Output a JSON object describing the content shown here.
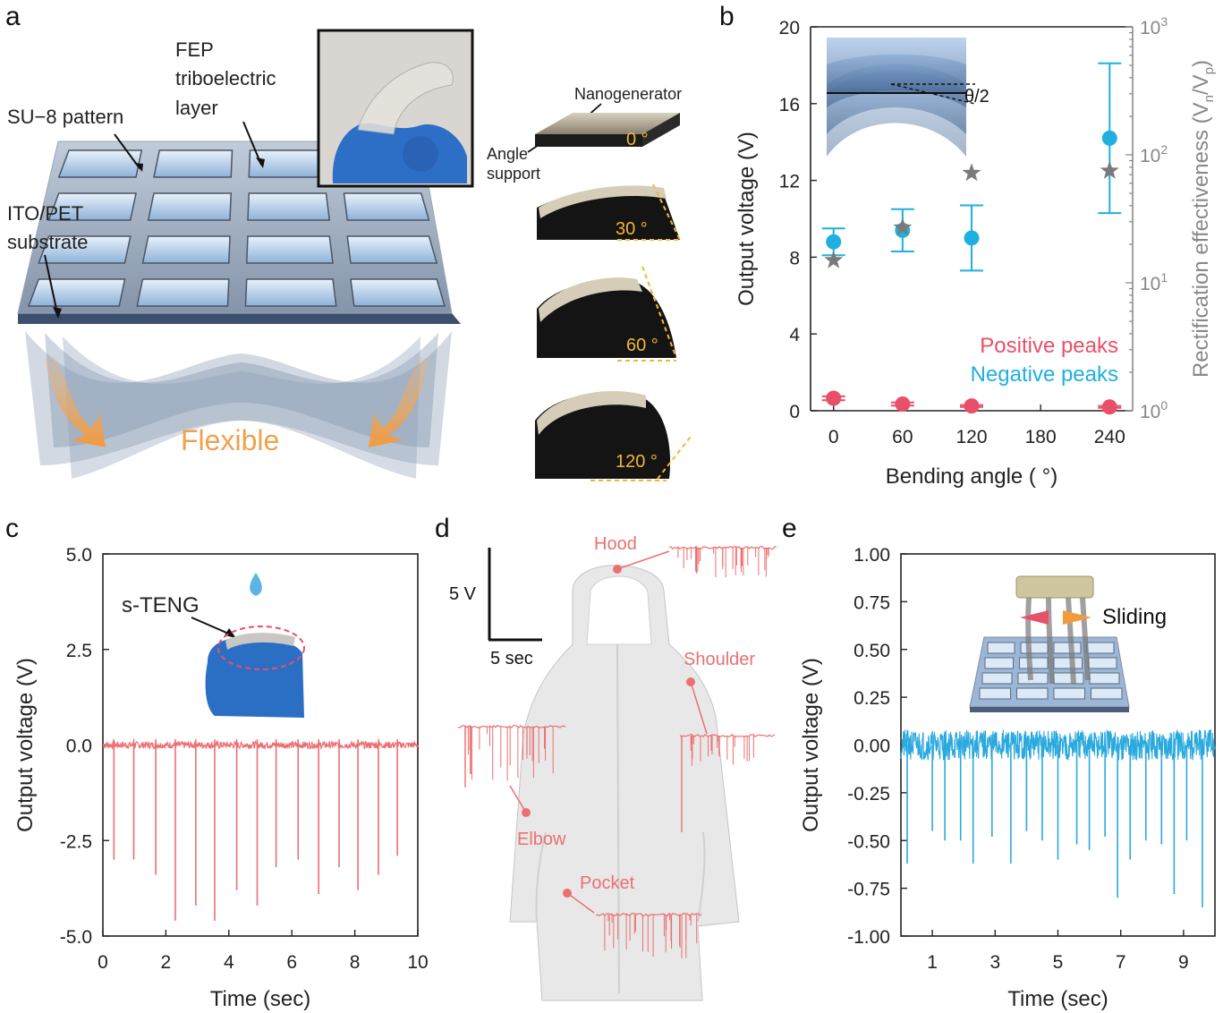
{
  "panels": {
    "a": {
      "letter": "a",
      "labels": {
        "fep": "FEP",
        "tribo": "triboelectric",
        "layer": "layer",
        "su8": "SU−8 pattern",
        "ito": "ITO/PET",
        "substrate": "substrate",
        "flexible": "Flexible",
        "nanogen": "Nanogenerator",
        "angle": "Angle",
        "support": "support"
      },
      "angles": [
        "0 °",
        "30 °",
        "60 °",
        "120 °"
      ]
    },
    "b": {
      "letter": "b",
      "inset_label": "θ/2",
      "legend": {
        "positive": "Positive peaks",
        "negative": "Negative peaks"
      },
      "ylabel": "Output voltage (V)",
      "y2label_main": "Rectification effectiveness (V",
      "y2_sub_n": "n",
      "y2_slash": "/V",
      "y2_sub_p": "p",
      "y2_close": ")",
      "y2ticks": [
        {
          "base": "10",
          "exp": "0"
        },
        {
          "base": "10",
          "exp": "1"
        },
        {
          "base": "10",
          "exp": "2"
        },
        {
          "base": "10",
          "exp": "3"
        }
      ]
    },
    "c": {
      "letter": "c",
      "inset_label": "s-TENG"
    },
    "d": {
      "letter": "d",
      "scale_v": "5 V",
      "scale_t": "5 sec",
      "locations": [
        "Hood",
        "Shoulder",
        "Elbow",
        "Pocket"
      ]
    },
    "e": {
      "letter": "e",
      "inset_label": "Sliding"
    }
  },
  "chart_data": [
    {
      "id": "b",
      "type": "scatter",
      "xlabel": "Bending angle ( °)",
      "ylabel": "Output voltage (V)",
      "xlim": [
        -20,
        260
      ],
      "ylim": [
        0,
        20
      ],
      "xticks": [
        0,
        60,
        120,
        180,
        240
      ],
      "yticks": [
        0,
        4,
        8,
        12,
        16,
        20
      ],
      "y2scale": "log",
      "y2lim": [
        1,
        1000
      ],
      "series": [
        {
          "name": "Positive peaks",
          "color": "#e8506a",
          "x": [
            0,
            60,
            120,
            240
          ],
          "y": [
            0.65,
            0.35,
            0.25,
            0.2
          ],
          "err": [
            0.1,
            0.08,
            0.05,
            0.05
          ]
        },
        {
          "name": "Negative peaks",
          "color": "#1fb0e0",
          "x": [
            0,
            60,
            120,
            240
          ],
          "y": [
            8.8,
            9.4,
            9.0,
            14.2
          ],
          "err": [
            0.7,
            1.1,
            1.7,
            3.9
          ]
        },
        {
          "name": "Rectification effectiveness",
          "color": "#7a7a7a",
          "marker": "star",
          "axis": "y2",
          "x": [
            0,
            60,
            120,
            240
          ],
          "y": [
            15,
            27,
            72,
            75
          ]
        }
      ]
    },
    {
      "id": "c",
      "type": "line",
      "xlabel": "Time (sec)",
      "ylabel": "Output voltage (V)",
      "xlim": [
        0,
        10
      ],
      "ylim": [
        -5,
        5
      ],
      "xticks": [
        0,
        2,
        4,
        6,
        8,
        10
      ],
      "yticks": [
        "5.0",
        "2.5",
        "0.0",
        "-2.5",
        "-5.0"
      ],
      "color": "#ec6f72",
      "baseline": 0,
      "peaks_x": [
        0.35,
        0.98,
        1.68,
        2.3,
        2.95,
        3.55,
        4.25,
        4.9,
        5.5,
        6.2,
        6.85,
        7.5,
        8.1,
        8.75,
        9.35
      ],
      "peaks_y": [
        -3.0,
        -3.0,
        -3.4,
        -4.6,
        -4.2,
        -4.6,
        -3.8,
        -4.2,
        -3.2,
        -3.0,
        -3.9,
        -3.2,
        -3.8,
        -3.4,
        -2.9
      ]
    },
    {
      "id": "e",
      "type": "line",
      "xlabel": "Time (sec)",
      "ylabel": "Output voltage (V)",
      "xlim": [
        0,
        10
      ],
      "ylim": [
        -1,
        1
      ],
      "xticks": [
        1,
        3,
        5,
        7,
        9
      ],
      "yticks": [
        "1.00",
        "0.75",
        "0.50",
        "0.25",
        "0.00",
        "-0.25",
        "-0.50",
        "-0.75",
        "-1.00"
      ],
      "color": "#2aa9dd",
      "baseline": 0,
      "peaks_x": [
        0.2,
        1.0,
        1.4,
        1.9,
        2.3,
        2.9,
        3.5,
        4.0,
        4.5,
        5.0,
        5.6,
        6.0,
        6.5,
        6.9,
        7.3,
        7.8,
        8.3,
        8.7,
        9.1,
        9.6
      ],
      "peaks_y": [
        -0.62,
        -0.45,
        -0.5,
        -0.5,
        -0.62,
        -0.48,
        -0.62,
        -0.45,
        -0.5,
        -0.6,
        -0.52,
        -0.55,
        -0.48,
        -0.8,
        -0.6,
        -0.5,
        -0.52,
        -0.78,
        -0.5,
        -0.85
      ]
    }
  ]
}
